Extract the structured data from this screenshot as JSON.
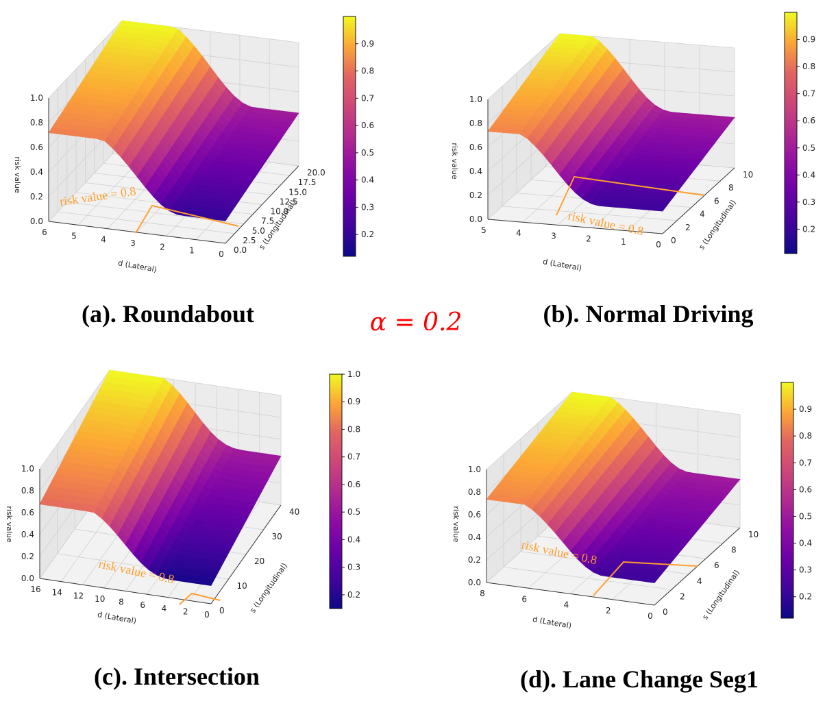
{
  "figure": {
    "center_label": "α = 0.2",
    "colormap": "plasma",
    "colors": {
      "alpha_label": "#ff0000",
      "annotation": "#ff9f2e",
      "grid": "#cccccc"
    }
  },
  "chart_data": [
    {
      "type": "surface",
      "caption": "(a). Roundabout",
      "zlabel": "risk value",
      "xlabel": "d (Lateral)",
      "ylabel": "s (Longitudinal)",
      "annotation": "risk value = 0.8",
      "x_ticks": [
        "6",
        "5",
        "4",
        "3",
        "2",
        "1",
        "0"
      ],
      "y_ticks": [
        "0.0",
        "2.5",
        "5.0",
        "7.5",
        "10.0",
        "12.5",
        "15.0",
        "17.5",
        "20.0"
      ],
      "z_ticks": [
        "0.0",
        "0.2",
        "0.4",
        "0.6",
        "0.8",
        "1.0"
      ],
      "xlim": [
        0,
        7
      ],
      "ylim": [
        0,
        22
      ],
      "zlim": [
        0,
        1
      ],
      "colorbar": {
        "ticks": [
          "0.2",
          "0.3",
          "0.4",
          "0.5",
          "0.6",
          "0.7",
          "0.8",
          "0.9"
        ],
        "range": [
          0.12,
          1.0
        ]
      },
      "min_value": 0.12,
      "contour_level": 0.8
    },
    {
      "type": "surface",
      "caption": "(b). Normal Driving",
      "zlabel": "risk value",
      "xlabel": "d (Lateral)",
      "ylabel": "s (Longitudinal)",
      "annotation": "risk value = 0.8",
      "x_ticks": [
        "5",
        "4",
        "3",
        "2",
        "1",
        "0"
      ],
      "y_ticks": [
        "0",
        "2",
        "4",
        "6",
        "8",
        "10"
      ],
      "z_ticks": [
        "0.0",
        "0.2",
        "0.4",
        "0.6",
        "0.8",
        "1.0"
      ],
      "xlim": [
        0,
        5.5
      ],
      "ylim": [
        0,
        11
      ],
      "zlim": [
        0,
        1
      ],
      "colorbar": {
        "ticks": [
          "0.2",
          "0.3",
          "0.4",
          "0.5",
          "0.6",
          "0.7",
          "0.8",
          "0.9"
        ],
        "range": [
          0.11,
          1.0
        ]
      },
      "min_value": 0.11,
      "contour_level": 0.8
    },
    {
      "type": "surface",
      "caption": "(c). Intersection",
      "zlabel": "risk value",
      "xlabel": "d (Lateral)",
      "ylabel": "s (Longitudinal)",
      "annotation": "risk value = 0.8",
      "x_ticks": [
        "16",
        "14",
        "12",
        "10",
        "8",
        "6",
        "4",
        "2",
        "0"
      ],
      "y_ticks": [
        "0",
        "10",
        "20",
        "30",
        "40"
      ],
      "z_ticks": [
        "0.0",
        "0.2",
        "0.4",
        "0.6",
        "0.8",
        "1.0"
      ],
      "xlim": [
        0,
        17
      ],
      "ylim": [
        0,
        48
      ],
      "zlim": [
        0,
        1
      ],
      "colorbar": {
        "ticks": [
          "0.2",
          "0.3",
          "0.4",
          "0.5",
          "0.6",
          "0.7",
          "0.8",
          "0.9",
          "1.0"
        ],
        "range": [
          0.15,
          1.0
        ]
      },
      "min_value": 0.15,
      "contour_level": 0.8
    },
    {
      "type": "surface",
      "caption": "(d). Lane Change Seg1",
      "zlabel": "risk value",
      "xlabel": "d (Lateral)",
      "ylabel": "s (Longitudinal)",
      "annotation": "risk value = 0.8",
      "x_ticks": [
        "8",
        "6",
        "4",
        "2",
        "0"
      ],
      "y_ticks": [
        "0",
        "2",
        "4",
        "6",
        "8",
        "10"
      ],
      "z_ticks": [
        "0.0",
        "0.2",
        "0.4",
        "0.6",
        "0.8",
        "1.0"
      ],
      "xlim": [
        0,
        9
      ],
      "ylim": [
        0,
        11.5
      ],
      "zlim": [
        0,
        1
      ],
      "colorbar": {
        "ticks": [
          "0.2",
          "0.3",
          "0.4",
          "0.5",
          "0.6",
          "0.7",
          "0.8",
          "0.9"
        ],
        "range": [
          0.12,
          1.0
        ]
      },
      "min_value": 0.12,
      "contour_level": 0.8
    }
  ]
}
